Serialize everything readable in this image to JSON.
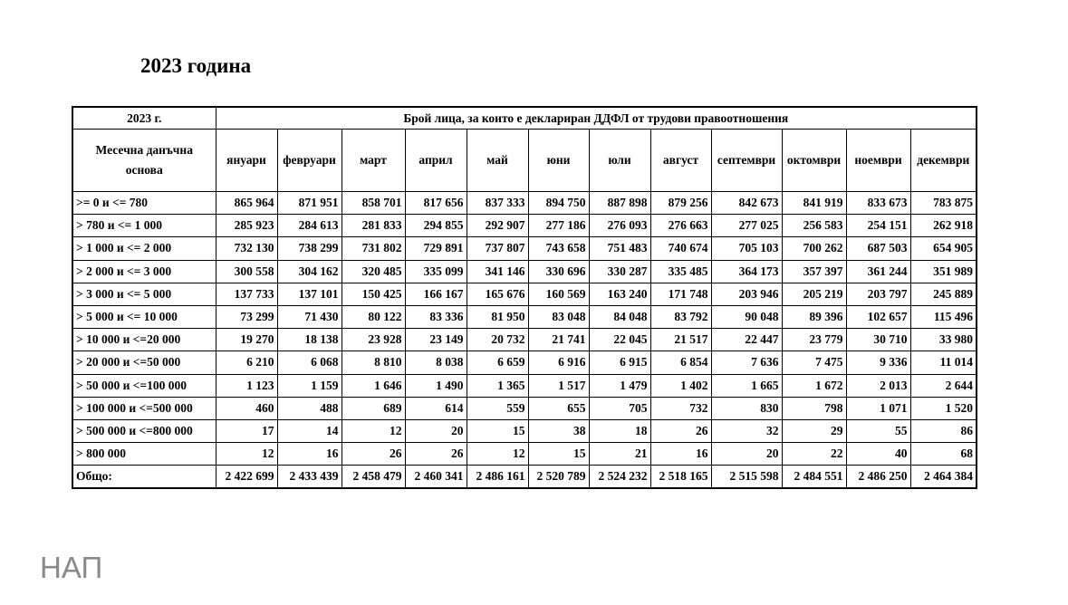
{
  "title": "2023 година",
  "table": {
    "corner": "2023 г.",
    "group_header": "Брой лица, за които е деклариран ДДФЛ от трудови правоотношения",
    "row_header": "Месечна данъчна основа",
    "columns": [
      "януари",
      "февруари",
      "март",
      "април",
      "май",
      "юни",
      "юли",
      "август",
      "септември",
      "октомври",
      "ноември",
      "декември"
    ],
    "rows": [
      [
        ">= 0 и <= 780",
        "865 964",
        "871 951",
        "858 701",
        "817 656",
        "837 333",
        "894 750",
        "887 898",
        "879 256",
        "842 673",
        "841 919",
        "833 673",
        "783 875"
      ],
      [
        "> 780 и <= 1 000",
        "285 923",
        "284 613",
        "281 833",
        "294 855",
        "292 907",
        "277 186",
        "276 093",
        "276 663",
        "277 025",
        "256 583",
        "254 151",
        "262 918"
      ],
      [
        "> 1 000 и <= 2 000",
        "732 130",
        "738 299",
        "731 802",
        "729 891",
        "737 807",
        "743 658",
        "751 483",
        "740 674",
        "705 103",
        "700 262",
        "687 503",
        "654 905"
      ],
      [
        "> 2 000 и <= 3 000",
        "300 558",
        "304 162",
        "320 485",
        "335 099",
        "341 146",
        "330 696",
        "330 287",
        "335 485",
        "364 173",
        "357 397",
        "361 244",
        "351 989"
      ],
      [
        "> 3 000 и <= 5 000",
        "137 733",
        "137 101",
        "150 425",
        "166 167",
        "165 676",
        "160 569",
        "163 240",
        "171 748",
        "203 946",
        "205 219",
        "203 797",
        "245 889"
      ],
      [
        "> 5 000 и <= 10 000",
        "73 299",
        "71 430",
        "80 122",
        "83 336",
        "81 950",
        "83 048",
        "84 048",
        "83 792",
        "90 048",
        "89 396",
        "102 657",
        "115 496"
      ],
      [
        "> 10 000 и <=20 000",
        "19 270",
        "18 138",
        "23 928",
        "23 149",
        "20 732",
        "21 741",
        "22 045",
        "21 517",
        "22 447",
        "23 779",
        "30 710",
        "33 980"
      ],
      [
        "> 20 000 и <=50 000",
        "6 210",
        "6 068",
        "8 810",
        "8 038",
        "6 659",
        "6 916",
        "6 915",
        "6 854",
        "7 636",
        "7 475",
        "9 336",
        "11 014"
      ],
      [
        "> 50 000 и <=100 000",
        "1 123",
        "1 159",
        "1 646",
        "1 490",
        "1 365",
        "1 517",
        "1 479",
        "1 402",
        "1 665",
        "1 672",
        "2 013",
        "2 644"
      ],
      [
        "> 100 000 и <=500 000",
        "460",
        "488",
        "689",
        "614",
        "559",
        "655",
        "705",
        "732",
        "830",
        "798",
        "1 071",
        "1 520"
      ],
      [
        "> 500 000 и <=800 000",
        "17",
        "14",
        "12",
        "20",
        "15",
        "38",
        "18",
        "26",
        "32",
        "29",
        "55",
        "86"
      ],
      [
        "> 800 000",
        "12",
        "16",
        "26",
        "26",
        "12",
        "15",
        "21",
        "16",
        "20",
        "22",
        "40",
        "68"
      ],
      [
        "Общо:",
        "2 422 699",
        "2 433 439",
        "2 458 479",
        "2 460 341",
        "2 486 161",
        "2 520 789",
        "2 524 232",
        "2 518 165",
        "2 515 598",
        "2 484 551",
        "2 486 250",
        "2 464 384"
      ]
    ]
  },
  "footer": "НАП"
}
